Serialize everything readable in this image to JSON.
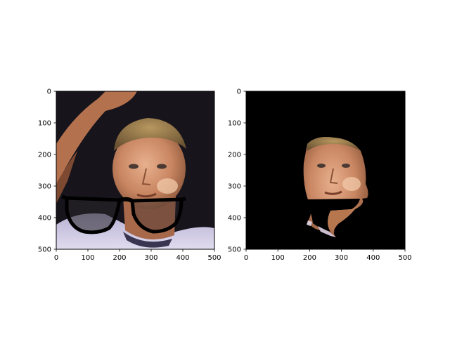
{
  "figure": {
    "background_color": "#ffffff"
  },
  "chart_data": [
    {
      "type": "image",
      "title": "",
      "xlabel": "",
      "ylabel": "",
      "xlim": [
        0,
        500
      ],
      "ylim": [
        500,
        0
      ],
      "xticks": [
        "0",
        "100",
        "200",
        "300",
        "400",
        "500"
      ],
      "yticks": [
        "0",
        "100",
        "200",
        "300",
        "400",
        "500"
      ],
      "image": {
        "description_key": "face-with-glasses-overlay",
        "background_color": "#17141c"
      }
    },
    {
      "type": "image",
      "title": "",
      "xlabel": "",
      "ylabel": "",
      "xlim": [
        0,
        500
      ],
      "ylim": [
        500,
        0
      ],
      "xticks": [
        "0",
        "100",
        "200",
        "300",
        "400",
        "500"
      ],
      "yticks": [
        "0",
        "100",
        "200",
        "300",
        "400",
        "500"
      ],
      "image": {
        "description_key": "segmented-face-mask",
        "background_color": "#000000"
      }
    }
  ]
}
